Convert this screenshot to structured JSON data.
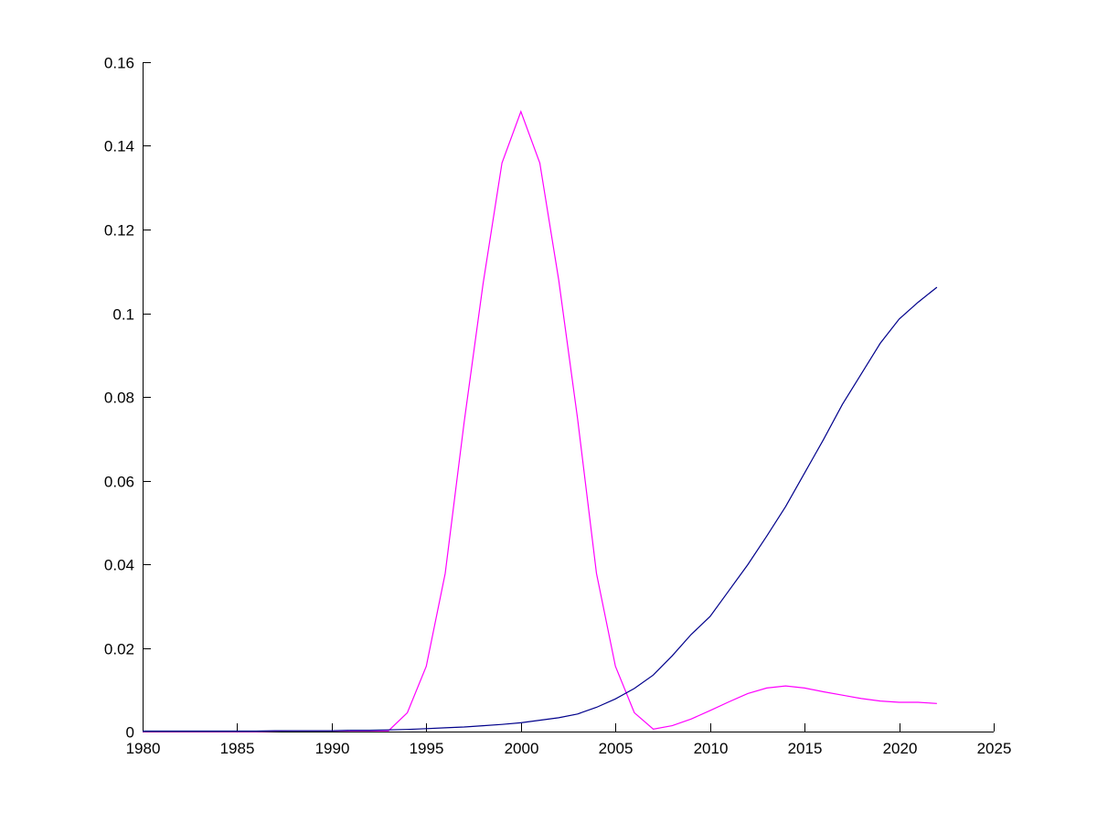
{
  "chart_data": {
    "type": "line",
    "title": "",
    "xlabel": "",
    "ylabel": "",
    "xlim": [
      1980,
      2025
    ],
    "ylim": [
      0,
      0.16
    ],
    "grid": false,
    "legend": "none",
    "xticks": [
      "1980",
      "1985",
      "1990",
      "1995",
      "2000",
      "2005",
      "2010",
      "2015",
      "2020",
      "2025"
    ],
    "yticks": [
      "0",
      "0.02",
      "0.04",
      "0.06",
      "0.08",
      "0.1",
      "0.12",
      "0.14",
      "0.16"
    ],
    "x": [
      1980,
      1981,
      1982,
      1983,
      1984,
      1985,
      1986,
      1987,
      1988,
      1989,
      1990,
      1991,
      1992,
      1993,
      1994,
      1995,
      1996,
      1997,
      1998,
      1999,
      2000,
      2001,
      2002,
      2003,
      2004,
      2005,
      2006,
      2007,
      2008,
      2009,
      2010,
      2011,
      2012,
      2013,
      2014,
      2015,
      2016,
      2017,
      2018,
      2019,
      2020,
      2021,
      2022
    ],
    "series": [
      {
        "color": "#ff00ff",
        "values": [
          0,
          0,
          0,
          0,
          0,
          0,
          0,
          0.0001,
          0.0002,
          0.0002,
          0.0002,
          0.0002,
          0.0002,
          0.0002,
          0.0045,
          0.0156,
          0.0378,
          0.0739,
          0.107,
          0.1359,
          0.1482,
          0.1359,
          0.1079,
          0.0748,
          0.0378,
          0.0156,
          0.0045,
          0.0006,
          0.0014,
          0.003,
          0.005,
          0.0071,
          0.0091,
          0.0104,
          0.0109,
          0.0104,
          0.0095,
          0.0087,
          0.0079,
          0.0073,
          0.007,
          0.007,
          0.0067
        ]
      },
      {
        "color": "#00008b",
        "values": [
          0.0001,
          0.0001,
          0.0001,
          0.0001,
          0.0001,
          0.0001,
          0.0001,
          0.0002,
          0.0002,
          0.0002,
          0.0002,
          0.0003,
          0.0003,
          0.0004,
          0.0005,
          0.0007,
          0.0009,
          0.0011,
          0.0014,
          0.0017,
          0.0021,
          0.0027,
          0.0033,
          0.0042,
          0.0058,
          0.0078,
          0.0103,
          0.0135,
          0.0181,
          0.0232,
          0.0275,
          0.0337,
          0.0399,
          0.0467,
          0.0538,
          0.0618,
          0.0698,
          0.0782,
          0.0855,
          0.0928,
          0.0986,
          0.1026,
          0.1062
        ]
      }
    ]
  }
}
